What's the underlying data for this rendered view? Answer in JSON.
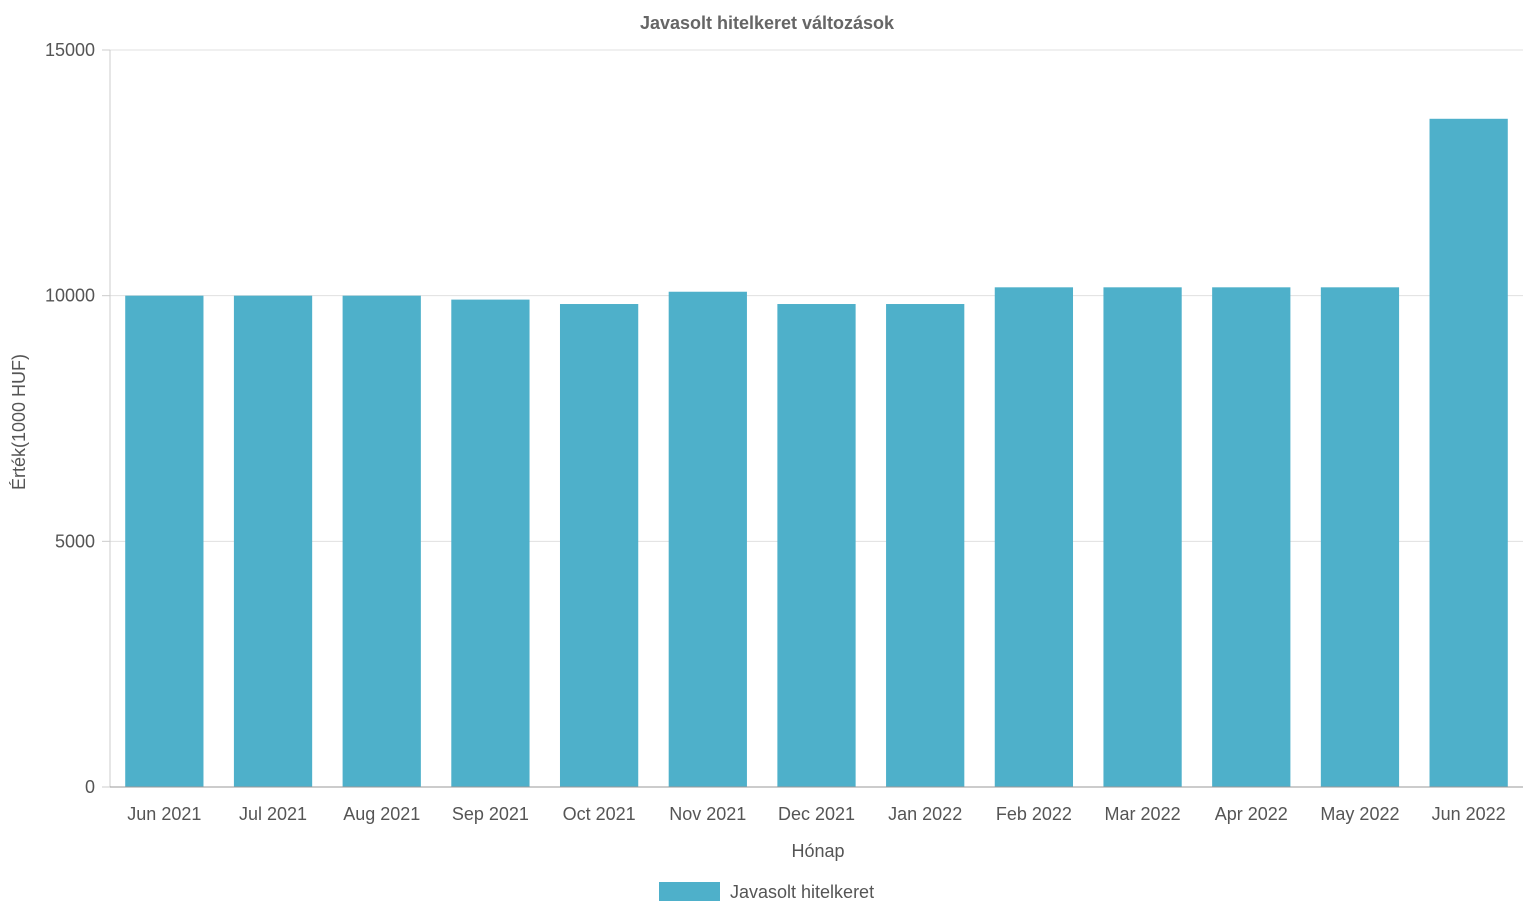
{
  "chart_data": {
    "type": "bar",
    "title": "Javasolt hitelkeret változások",
    "xlabel": "Hónap",
    "ylabel": "Érték(1000 HUF)",
    "ylim": [
      0,
      15000
    ],
    "yticks": [
      0,
      5000,
      10000,
      15000
    ],
    "grid": true,
    "legend_position": "bottom",
    "categories": [
      "Jun 2021",
      "Jul 2021",
      "Aug 2021",
      "Sep 2021",
      "Oct 2021",
      "Nov 2021",
      "Dec 2021",
      "Jan 2022",
      "Feb 2022",
      "Mar 2022",
      "Apr 2022",
      "May 2022",
      "Jun 2022"
    ],
    "series": [
      {
        "name": "Javasolt hitelkeret",
        "color": "#4eb0ca",
        "values": [
          10000,
          10000,
          10000,
          9920,
          9830,
          10080,
          9830,
          9830,
          10170,
          10170,
          10170,
          10170,
          13600
        ]
      }
    ]
  }
}
